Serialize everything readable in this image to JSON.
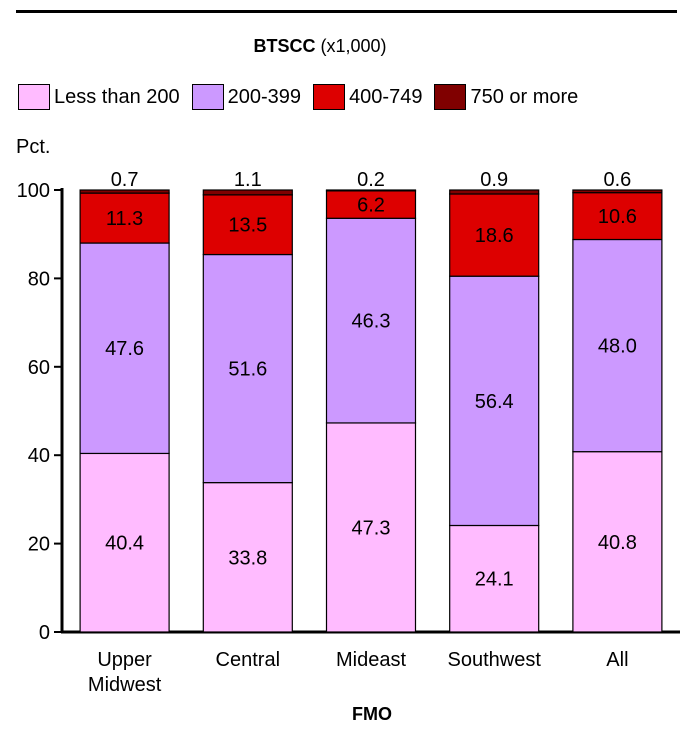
{
  "chart_data": {
    "type": "bar",
    "stacked": true,
    "legend_title_bold": "BTSCC",
    "legend_title_rest": "(x1,000)",
    "ylabel": "Pct.",
    "xlabel": "FMO",
    "ylim": [
      0,
      100
    ],
    "yticks": [
      "0",
      "20",
      "40",
      "60",
      "80",
      "100"
    ],
    "categories": [
      "Upper Midwest",
      "Central",
      "Mideast",
      "Southwest",
      "All"
    ],
    "category_lines": [
      [
        "Upper",
        "Midwest"
      ],
      [
        "Central"
      ],
      [
        "Mideast"
      ],
      [
        "Southwest"
      ],
      [
        "All"
      ]
    ],
    "series": [
      {
        "name": "Less than 200",
        "color": "#ffbbff",
        "values": [
          40.4,
          33.8,
          47.3,
          24.1,
          40.8
        ],
        "labels": [
          "40.4",
          "33.8",
          "47.3",
          "24.1",
          "40.8"
        ]
      },
      {
        "name": "200-399",
        "color": "#cc99ff",
        "values": [
          47.6,
          51.6,
          46.3,
          56.4,
          48.0
        ],
        "labels": [
          "47.6",
          "51.6",
          "46.3",
          "56.4",
          "48.0"
        ]
      },
      {
        "name": "400-749",
        "color": "#dd0000",
        "values": [
          11.3,
          13.5,
          6.2,
          18.6,
          10.6
        ],
        "labels": [
          "11.3",
          "13.5",
          "6.2",
          "18.6",
          "10.6"
        ]
      },
      {
        "name": "750 or more",
        "color": "#800000",
        "values": [
          0.7,
          1.1,
          0.2,
          0.9,
          0.6
        ],
        "labels": [
          "0.7",
          "1.1",
          "0.2",
          "0.9",
          "0.6"
        ]
      }
    ],
    "legend_position": "top"
  }
}
